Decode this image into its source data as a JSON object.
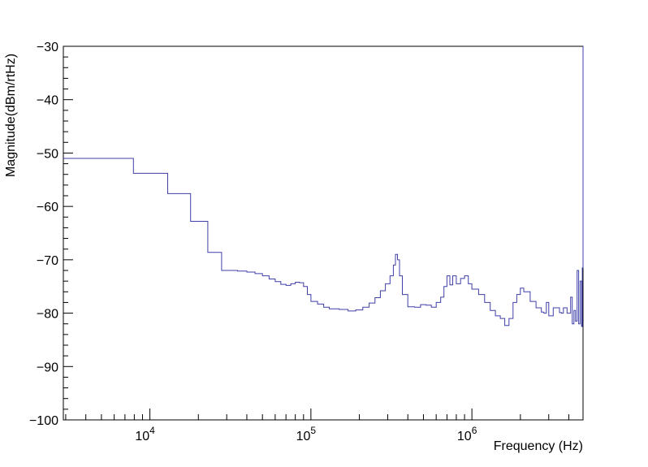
{
  "chart_data": {
    "type": "line",
    "title": "",
    "xlabel": "Frequency (Hz)",
    "ylabel": "Magnitude(dBm/rtHz)",
    "x_scale": "log",
    "xlim": [
      2900,
      4900000
    ],
    "ylim": [
      -100,
      -30
    ],
    "x_ticks": [
      {
        "value": 10000,
        "base": "10",
        "exp": "4"
      },
      {
        "value": 100000,
        "base": "10",
        "exp": "5"
      },
      {
        "value": 1000000,
        "base": "10",
        "exp": "6"
      }
    ],
    "y_ticks": [
      {
        "value": -30,
        "label": "−30"
      },
      {
        "value": -40,
        "label": "−40"
      },
      {
        "value": -50,
        "label": "−50"
      },
      {
        "value": -60,
        "label": "−60"
      },
      {
        "value": -70,
        "label": "−70"
      },
      {
        "value": -80,
        "label": "−80"
      },
      {
        "value": -90,
        "label": "−90"
      },
      {
        "value": -100,
        "label": "−100"
      }
    ],
    "grid": false,
    "line_color": "#3f3fa8",
    "series": [
      {
        "name": "",
        "x": [
          2900,
          7900,
          12900,
          17900,
          22900,
          27900,
          35000,
          40000,
          45000,
          50000,
          55000,
          60000,
          65000,
          70000,
          75000,
          80000,
          85000,
          90000,
          95000,
          100000,
          110000,
          120000,
          130000,
          150000,
          170000,
          190000,
          210000,
          230000,
          250000,
          270000,
          290000,
          310000,
          325000,
          335000,
          345000,
          355000,
          370000,
          400000,
          440000,
          480000,
          520000,
          560000,
          600000,
          640000,
          670000,
          700000,
          730000,
          760000,
          800000,
          850000,
          900000,
          950000,
          1000000,
          1100000,
          1200000,
          1300000,
          1400000,
          1500000,
          1600000,
          1700000,
          1800000,
          1900000,
          2000000,
          2100000,
          2300000,
          2500000,
          2700000,
          2800000,
          2900000,
          3000000,
          3200000,
          3500000,
          3600000,
          3700000,
          3900000,
          4100000,
          4200000,
          4300000,
          4400000,
          4500000,
          4600000,
          4700000,
          4800000,
          4850000,
          4900000
        ],
        "y": [
          -51,
          -53.8,
          -57.6,
          -62.8,
          -68.6,
          -72,
          -72.1,
          -72.3,
          -72.6,
          -73,
          -73.6,
          -74.1,
          -74.6,
          -74.8,
          -74.5,
          -74.2,
          -74.3,
          -75,
          -76.5,
          -77.8,
          -78.3,
          -78.9,
          -79.2,
          -79.3,
          -79.6,
          -79.4,
          -78.9,
          -78.1,
          -77.1,
          -75.8,
          -74.5,
          -73,
          -71,
          -69,
          -70,
          -73,
          -76.5,
          -78.8,
          -78.9,
          -78.4,
          -78.5,
          -78.9,
          -78,
          -77,
          -75,
          -73,
          -74.7,
          -73,
          -74.5,
          -73.5,
          -73,
          -74.5,
          -75.5,
          -76.5,
          -78,
          -79.5,
          -80.5,
          -81,
          -82.3,
          -81,
          -78,
          -76.5,
          -75.3,
          -76,
          -77.8,
          -79,
          -79.8,
          -80,
          -78,
          -80.5,
          -79,
          -79.9,
          -80,
          -79,
          -80,
          -77,
          -82,
          -79.5,
          -81.5,
          -72,
          -82,
          -74,
          -82.5,
          -71.5,
          -30
        ]
      }
    ]
  }
}
